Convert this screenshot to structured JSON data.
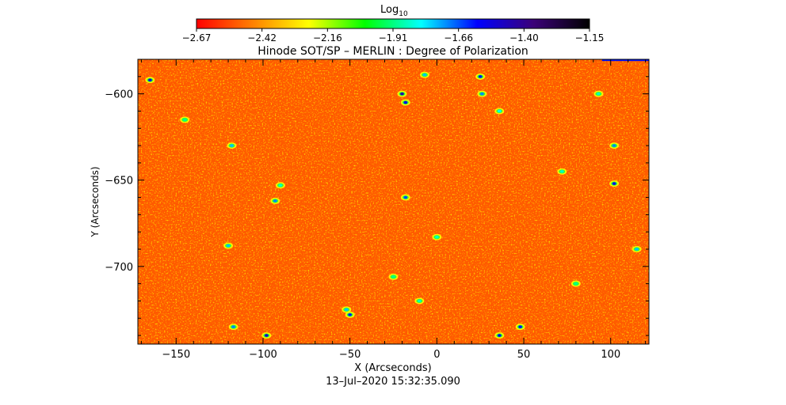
{
  "chart_data": {
    "type": "heatmap",
    "title": "Hinode SOT/SP – MERLIN : Degree of Polarization",
    "xlabel": "X (Arcseconds)",
    "ylabel": "Y (Arcseconds)",
    "xlim": [
      -172,
      122
    ],
    "ylim": [
      -745,
      -580
    ],
    "x_ticks": [
      -150,
      -100,
      -50,
      0,
      50,
      100
    ],
    "x_tick_labels": [
      "−150",
      "−100",
      "−50",
      "0",
      "50",
      "100"
    ],
    "y_ticks": [
      -600,
      -650,
      -700
    ],
    "y_tick_labels": [
      "−600",
      "−650",
      "−700"
    ],
    "colorbar": {
      "label_base": "Log",
      "label_sub": "10",
      "range": [
        -2.67,
        -1.15
      ],
      "tick_labels": [
        "−2.67",
        "−2.42",
        "−2.16",
        "−1.91",
        "−1.66",
        "−1.40",
        "−1.15"
      ],
      "colormap": [
        "#ff0000",
        "#ff8000",
        "#ffff00",
        "#00ff00",
        "#00ffff",
        "#0000ff",
        "#3b0078",
        "#000000"
      ]
    },
    "typical_value_range": [
      -2.67,
      -2.35
    ],
    "patches": [
      {
        "x": -20,
        "y": -600,
        "value": -1.45
      },
      {
        "x": -18,
        "y": -605,
        "value": -1.55
      },
      {
        "x": 26,
        "y": -600,
        "value": -1.7
      },
      {
        "x": 25,
        "y": -590,
        "value": -1.6
      },
      {
        "x": -7,
        "y": -589,
        "value": -1.75
      },
      {
        "x": 36,
        "y": -610,
        "value": -1.8
      },
      {
        "x": 93,
        "y": -600,
        "value": -1.85
      },
      {
        "x": -93,
        "y": -662,
        "value": -1.7
      },
      {
        "x": -90,
        "y": -653,
        "value": -1.85
      },
      {
        "x": -120,
        "y": -688,
        "value": -1.75
      },
      {
        "x": -18,
        "y": -660,
        "value": -1.65
      },
      {
        "x": 102,
        "y": -630,
        "value": -1.7
      },
      {
        "x": 102,
        "y": -652,
        "value": -1.55
      },
      {
        "x": 115,
        "y": -690,
        "value": -1.75
      },
      {
        "x": -25,
        "y": -706,
        "value": -1.9
      },
      {
        "x": -50,
        "y": -728,
        "value": -1.6
      },
      {
        "x": -52,
        "y": -725,
        "value": -1.75
      },
      {
        "x": 48,
        "y": -735,
        "value": -1.6
      },
      {
        "x": 36,
        "y": -740,
        "value": -1.55
      },
      {
        "x": -98,
        "y": -740,
        "value": -1.5
      },
      {
        "x": -117,
        "y": -735,
        "value": -1.7
      },
      {
        "x": -165,
        "y": -592,
        "value": -1.55
      },
      {
        "x": -145,
        "y": -615,
        "value": -1.9
      },
      {
        "x": -118,
        "y": -630,
        "value": -1.75
      },
      {
        "x": 72,
        "y": -645,
        "value": -1.85
      },
      {
        "x": 0,
        "y": -683,
        "value": -1.85
      },
      {
        "x": 80,
        "y": -710,
        "value": -1.9
      },
      {
        "x": -10,
        "y": -720,
        "value": -1.85
      }
    ],
    "edge_band": {
      "y_range": [
        -581,
        -580
      ],
      "x_range": [
        95,
        122
      ],
      "value": -1.6
    },
    "timestamp": "13–Jul–2020 15:32:35.090"
  }
}
